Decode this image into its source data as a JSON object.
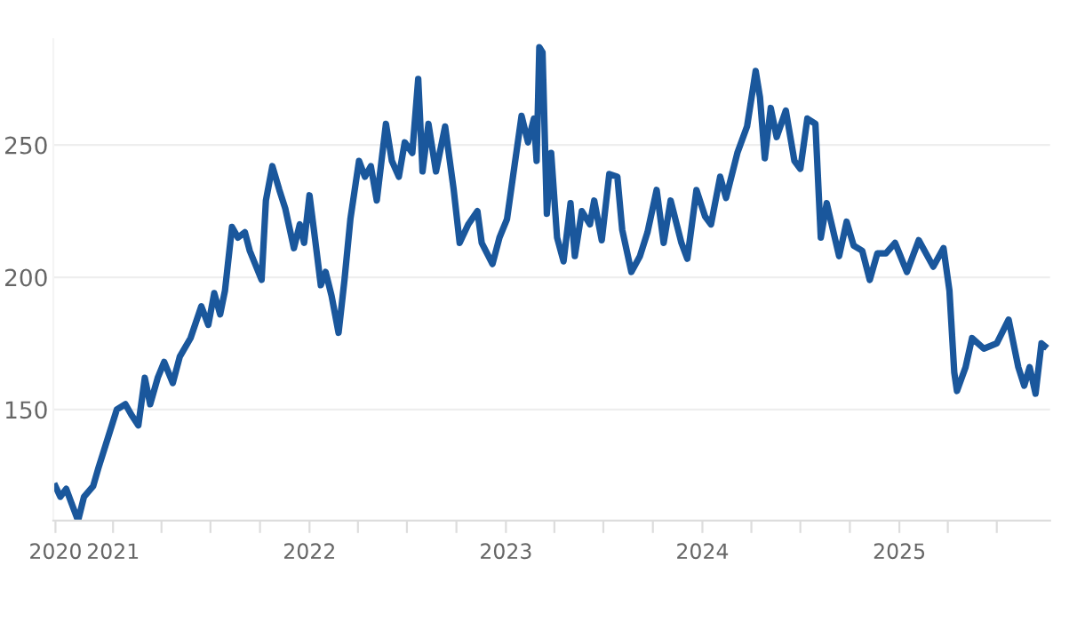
{
  "chart_data": {
    "type": "line",
    "x": [
      "2020-09-16",
      "2020-09-25",
      "2020-10-06",
      "2020-10-15",
      "2020-10-28",
      "2020-11-08",
      "2020-11-25",
      "2020-12-05",
      "2020-12-22",
      "2021-01-08",
      "2021-01-24",
      "2021-02-04",
      "2021-02-17",
      "2021-03-01",
      "2021-03-11",
      "2021-03-25",
      "2021-04-06",
      "2021-04-22",
      "2021-05-05",
      "2021-05-25",
      "2021-06-14",
      "2021-06-27",
      "2021-07-08",
      "2021-07-19",
      "2021-07-28",
      "2021-08-10",
      "2021-08-21",
      "2021-09-03",
      "2021-09-12",
      "2021-10-04",
      "2021-10-12",
      "2021-10-24",
      "2021-11-06",
      "2021-11-17",
      "2021-12-03",
      "2021-12-14",
      "2021-12-22",
      "2022-01-01",
      "2022-01-11",
      "2022-01-22",
      "2022-01-31",
      "2022-02-11",
      "2022-02-24",
      "2022-03-07",
      "2022-03-18",
      "2022-04-03",
      "2022-04-14",
      "2022-04-25",
      "2022-05-06",
      "2022-05-23",
      "2022-06-03",
      "2022-06-16",
      "2022-06-27",
      "2022-07-11",
      "2022-07-22",
      "2022-07-30",
      "2022-08-10",
      "2022-08-24",
      "2022-09-10",
      "2022-09-26",
      "2022-10-07",
      "2022-10-23",
      "2022-11-09",
      "2022-11-17",
      "2022-12-07",
      "2022-12-20",
      "2023-01-03",
      "2023-01-14",
      "2023-01-30",
      "2023-02-11",
      "2023-02-22",
      "2023-02-27",
      "2023-03-04",
      "2023-03-10",
      "2023-03-18",
      "2023-03-26",
      "2023-04-06",
      "2023-04-18",
      "2023-05-01",
      "2023-05-09",
      "2023-05-22",
      "2023-06-06",
      "2023-06-14",
      "2023-06-28",
      "2023-07-12",
      "2023-07-27",
      "2023-08-05",
      "2023-08-22",
      "2023-09-07",
      "2023-09-21",
      "2023-10-08",
      "2023-10-21",
      "2023-11-03",
      "2023-11-23",
      "2023-12-04",
      "2023-12-21",
      "2024-01-06",
      "2024-01-17",
      "2024-02-03",
      "2024-02-14",
      "2024-03-06",
      "2024-03-24",
      "2024-04-09",
      "2024-04-17",
      "2024-04-26",
      "2024-05-07",
      "2024-05-18",
      "2024-06-04",
      "2024-06-20",
      "2024-07-01",
      "2024-07-14",
      "2024-07-29",
      "2024-08-08",
      "2024-08-19",
      "2024-09-11",
      "2024-09-25",
      "2024-10-08",
      "2024-10-24",
      "2024-11-07",
      "2024-11-21",
      "2024-12-07",
      "2024-12-24",
      "2025-01-15",
      "2025-02-06",
      "2025-03-05",
      "2025-03-24",
      "2025-04-04",
      "2025-04-13",
      "2025-04-18",
      "2025-05-04",
      "2025-05-16",
      "2025-06-07",
      "2025-07-01",
      "2025-07-23",
      "2025-08-10",
      "2025-08-21",
      "2025-08-31",
      "2025-09-11",
      "2025-09-22",
      "2025-09-28"
    ],
    "series": [
      {
        "color": "#1a579c",
        "values": [
          121,
          117,
          120,
          115,
          108,
          117,
          121,
          128,
          139,
          150,
          152,
          148,
          144,
          162,
          152,
          162,
          168,
          160,
          170,
          177,
          189,
          182,
          194,
          186,
          195,
          219,
          215,
          217,
          210,
          199,
          229,
          242,
          233,
          226,
          211,
          220,
          213,
          231,
          215,
          197,
          202,
          193,
          179,
          199,
          222,
          244,
          238,
          242,
          229,
          258,
          244,
          238,
          251,
          247,
          275,
          240,
          258,
          240,
          257,
          233,
          213,
          220,
          225,
          213,
          205,
          215,
          222,
          238,
          261,
          251,
          260,
          244,
          287,
          285,
          224,
          247,
          215,
          206,
          228,
          208,
          225,
          220,
          229,
          214,
          239,
          238,
          218,
          202,
          208,
          217,
          233,
          213,
          229,
          213,
          207,
          233,
          223,
          220,
          238,
          230,
          247,
          257,
          278,
          268,
          245,
          264,
          253,
          263,
          244,
          241,
          260,
          258,
          215,
          228,
          208,
          221,
          212,
          210,
          199,
          209,
          209,
          213,
          202,
          214,
          204,
          211,
          195,
          164,
          157,
          166,
          177,
          173,
          175,
          184,
          166,
          159,
          166,
          156,
          175,
          174
        ]
      }
    ],
    "xlim": [
      "2020-09-12",
      "2025-10-08"
    ],
    "xticks": [
      {
        "value": "2020-09-16",
        "label": "2020"
      },
      "2021",
      {
        "value": "2021-04-01",
        "label": null
      },
      {
        "value": "2021-07-01",
        "label": null
      },
      {
        "value": "2021-10-01",
        "label": null
      },
      "2022",
      {
        "value": "2022-04-01",
        "label": null
      },
      {
        "value": "2022-07-01",
        "label": null
      },
      {
        "value": "2022-10-01",
        "label": null
      },
      "2023",
      {
        "value": "2023-04-01",
        "label": null
      },
      {
        "value": "2023-07-01",
        "label": null
      },
      {
        "value": "2023-10-01",
        "label": null
      },
      "2024",
      {
        "value": "2024-04-01",
        "label": null
      },
      {
        "value": "2024-07-01",
        "label": null
      },
      {
        "value": "2024-10-01",
        "label": null
      },
      "2025",
      {
        "value": "2025-04-01",
        "label": null
      },
      {
        "value": "2025-07-01",
        "label": null
      }
    ],
    "ylim": [
      108,
      290
    ],
    "yticks": [
      150,
      200,
      250
    ],
    "grid": "y",
    "marker": "none",
    "line_style": "solid"
  }
}
